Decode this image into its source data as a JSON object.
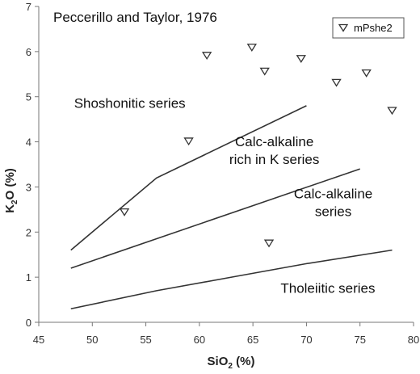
{
  "chart_data": {
    "type": "scatter",
    "title": "Peccerillo and Taylor, 1976",
    "xlabel": {
      "main": "SiO",
      "sub": "2",
      "rest": " (%)"
    },
    "ylabel": {
      "main": "K",
      "sub": "2",
      "rest": "O (%)"
    },
    "xlim": [
      45,
      80
    ],
    "ylim": [
      0,
      7
    ],
    "x_ticks": [
      45,
      50,
      55,
      60,
      65,
      70,
      75,
      80
    ],
    "y_ticks": [
      0,
      1,
      2,
      3,
      4,
      5,
      6,
      7
    ],
    "grid": false,
    "legend_position": "top-right",
    "colors": {
      "line": "#333333",
      "marker": "#333333",
      "axis": "#777777"
    },
    "boundary_lines": [
      {
        "points": [
          [
            48,
            1.6
          ],
          [
            52,
            2.4
          ],
          [
            56,
            3.2
          ],
          [
            70,
            4.8
          ]
        ]
      },
      {
        "points": [
          [
            48,
            1.2
          ],
          [
            75,
            3.4
          ]
        ]
      },
      {
        "points": [
          [
            48,
            0.3
          ],
          [
            56,
            0.7
          ],
          [
            63,
            1.0
          ],
          [
            70,
            1.3
          ],
          [
            78,
            1.6
          ]
        ]
      }
    ],
    "region_labels": [
      {
        "lines": [
          "Shoshonitic series"
        ],
        "x": 53.5,
        "y": 4.75
      },
      {
        "lines": [
          "Calc-alkaline",
          "rich in K series"
        ],
        "x": 67.0,
        "y": 3.9
      },
      {
        "lines": [
          "Calc-alkaline",
          "series"
        ],
        "x": 72.5,
        "y": 2.75
      },
      {
        "lines": [
          "Tholeiitic series"
        ],
        "x": 72.0,
        "y": 0.65
      }
    ],
    "series": [
      {
        "name": "mPshe2",
        "marker": "triangle-down",
        "points": [
          [
            53,
            2.45
          ],
          [
            59,
            4.02
          ],
          [
            60.7,
            5.92
          ],
          [
            64.9,
            6.1
          ],
          [
            66.1,
            5.57
          ],
          [
            66.5,
            1.76
          ],
          [
            69.5,
            5.85
          ],
          [
            72.8,
            5.32
          ],
          [
            75.6,
            5.53
          ],
          [
            78,
            4.7
          ]
        ]
      }
    ]
  }
}
